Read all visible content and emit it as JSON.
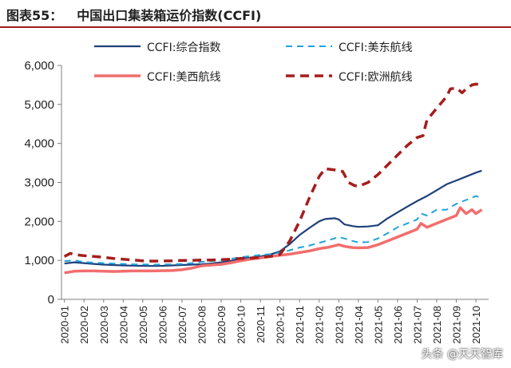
{
  "title": {
    "figure": "图表55：",
    "text": "中国出口集装箱运价指数(CCFI)"
  },
  "watermark": "头条 @天天智库",
  "chart_data": {
    "type": "line",
    "ylim": [
      0,
      6000
    ],
    "yticks": [
      "0",
      "1,000",
      "2,000",
      "3,000",
      "4,000",
      "5,000",
      "6,000"
    ],
    "ytick_values": [
      0,
      1000,
      2000,
      3000,
      4000,
      5000,
      6000
    ],
    "categories": [
      "2020-01",
      "2020-02",
      "2020-03",
      "2020-04",
      "2020-05",
      "2020-06",
      "2020-07",
      "2020-08",
      "2020-09",
      "2020-10",
      "2020-11",
      "2020-12",
      "2021-01",
      "2021-02",
      "2021-03",
      "2021-04",
      "2021-05",
      "2021-06",
      "2021-07",
      "2021-08",
      "2021-09",
      "2021-10"
    ],
    "x_end": 21.3,
    "legend_position": "top",
    "series": [
      {
        "name": "CCFI:综合指数",
        "color": "#1f3f7a",
        "style": "solid",
        "width": 2.2,
        "points": [
          [
            0,
            920
          ],
          [
            0.5,
            950
          ],
          [
            1,
            930
          ],
          [
            1.5,
            910
          ],
          [
            2,
            890
          ],
          [
            2.5,
            880
          ],
          [
            3,
            870
          ],
          [
            3.5,
            865
          ],
          [
            4,
            860
          ],
          [
            4.5,
            855
          ],
          [
            5,
            860
          ],
          [
            5.5,
            870
          ],
          [
            6,
            880
          ],
          [
            6.5,
            890
          ],
          [
            7,
            900
          ],
          [
            7.5,
            920
          ],
          [
            8,
            950
          ],
          [
            8.5,
            990
          ],
          [
            9,
            1040
          ],
          [
            9.5,
            1070
          ],
          [
            10,
            1100
          ],
          [
            10.5,
            1150
          ],
          [
            11,
            1230
          ],
          [
            11.5,
            1420
          ],
          [
            12,
            1650
          ],
          [
            12.5,
            1830
          ],
          [
            13,
            2000
          ],
          [
            13.3,
            2060
          ],
          [
            13.8,
            2080
          ],
          [
            14,
            2050
          ],
          [
            14.3,
            1920
          ],
          [
            14.7,
            1880
          ],
          [
            15,
            1860
          ],
          [
            15.5,
            1870
          ],
          [
            16,
            1900
          ],
          [
            16.5,
            2080
          ],
          [
            17,
            2230
          ],
          [
            17.5,
            2380
          ],
          [
            18,
            2520
          ],
          [
            18.5,
            2650
          ],
          [
            19,
            2800
          ],
          [
            19.5,
            2950
          ],
          [
            20,
            3050
          ],
          [
            20.5,
            3150
          ],
          [
            21,
            3250
          ],
          [
            21.3,
            3300
          ]
        ]
      },
      {
        "name": "CCFI:美东航线",
        "color": "#1fa3dc",
        "style": "dashed",
        "width": 2,
        "points": [
          [
            0,
            980
          ],
          [
            0.5,
            1000
          ],
          [
            1,
            960
          ],
          [
            1.5,
            940
          ],
          [
            2,
            930
          ],
          [
            2.5,
            920
          ],
          [
            3,
            910
          ],
          [
            3.5,
            900
          ],
          [
            4,
            895
          ],
          [
            4.5,
            890
          ],
          [
            5,
            895
          ],
          [
            5.5,
            900
          ],
          [
            6,
            910
          ],
          [
            6.5,
            930
          ],
          [
            7,
            960
          ],
          [
            7.5,
            980
          ],
          [
            8,
            1010
          ],
          [
            8.5,
            1040
          ],
          [
            9,
            1080
          ],
          [
            9.5,
            1110
          ],
          [
            10,
            1140
          ],
          [
            10.5,
            1160
          ],
          [
            11,
            1200
          ],
          [
            11.5,
            1260
          ],
          [
            12,
            1330
          ],
          [
            12.5,
            1380
          ],
          [
            13,
            1450
          ],
          [
            13.5,
            1520
          ],
          [
            14,
            1600
          ],
          [
            14.3,
            1560
          ],
          [
            14.7,
            1500
          ],
          [
            15,
            1460
          ],
          [
            15.5,
            1470
          ],
          [
            16,
            1560
          ],
          [
            16.5,
            1700
          ],
          [
            17,
            1850
          ],
          [
            17.5,
            1950
          ],
          [
            18,
            2050
          ],
          [
            18.2,
            2200
          ],
          [
            18.5,
            2150
          ],
          [
            19,
            2300
          ],
          [
            19.5,
            2300
          ],
          [
            20,
            2450
          ],
          [
            20.5,
            2550
          ],
          [
            21,
            2650
          ],
          [
            21.3,
            2600
          ]
        ]
      },
      {
        "name": "CCFI:美西航线",
        "color": "#f26d6d",
        "style": "solid",
        "width": 3.5,
        "points": [
          [
            0,
            680
          ],
          [
            0.5,
            720
          ],
          [
            1,
            730
          ],
          [
            1.5,
            730
          ],
          [
            2,
            720
          ],
          [
            2.5,
            715
          ],
          [
            3,
            720
          ],
          [
            3.5,
            730
          ],
          [
            4,
            730
          ],
          [
            4.5,
            730
          ],
          [
            5,
            735
          ],
          [
            5.5,
            740
          ],
          [
            6,
            760
          ],
          [
            6.5,
            800
          ],
          [
            7,
            860
          ],
          [
            7.5,
            880
          ],
          [
            8,
            900
          ],
          [
            8.5,
            940
          ],
          [
            9,
            990
          ],
          [
            9.5,
            1030
          ],
          [
            10,
            1060
          ],
          [
            10.5,
            1100
          ],
          [
            11,
            1130
          ],
          [
            11.5,
            1160
          ],
          [
            12,
            1200
          ],
          [
            12.5,
            1240
          ],
          [
            13,
            1300
          ],
          [
            13.5,
            1340
          ],
          [
            14,
            1400
          ],
          [
            14.3,
            1360
          ],
          [
            14.7,
            1330
          ],
          [
            15,
            1320
          ],
          [
            15.5,
            1330
          ],
          [
            16,
            1400
          ],
          [
            16.5,
            1500
          ],
          [
            17,
            1600
          ],
          [
            17.5,
            1700
          ],
          [
            18,
            1800
          ],
          [
            18.2,
            1950
          ],
          [
            18.5,
            1850
          ],
          [
            19,
            1950
          ],
          [
            19.5,
            2050
          ],
          [
            20,
            2150
          ],
          [
            20.2,
            2350
          ],
          [
            20.5,
            2200
          ],
          [
            20.8,
            2300
          ],
          [
            21,
            2200
          ],
          [
            21.3,
            2300
          ]
        ]
      },
      {
        "name": "CCFI:欧洲航线",
        "color": "#a51d1d",
        "style": "dashed",
        "width": 3.5,
        "points": [
          [
            0,
            1100
          ],
          [
            0.3,
            1180
          ],
          [
            0.5,
            1150
          ],
          [
            1,
            1120
          ],
          [
            1.5,
            1100
          ],
          [
            2,
            1080
          ],
          [
            2.5,
            1050
          ],
          [
            3,
            1030
          ],
          [
            3.5,
            1010
          ],
          [
            4,
            990
          ],
          [
            4.5,
            980
          ],
          [
            5,
            985
          ],
          [
            5.5,
            990
          ],
          [
            6,
            1000
          ],
          [
            6.5,
            1000
          ],
          [
            7,
            1010
          ],
          [
            7.5,
            1010
          ],
          [
            8,
            1020
          ],
          [
            8.5,
            1030
          ],
          [
            9,
            1050
          ],
          [
            9.5,
            1060
          ],
          [
            10,
            1080
          ],
          [
            10.5,
            1100
          ],
          [
            11,
            1150
          ],
          [
            11.5,
            1500
          ],
          [
            12,
            2000
          ],
          [
            12.5,
            2600
          ],
          [
            13,
            3150
          ],
          [
            13.3,
            3350
          ],
          [
            13.8,
            3320
          ],
          [
            14.2,
            3280
          ],
          [
            14.5,
            3000
          ],
          [
            14.8,
            2920
          ],
          [
            15,
            2900
          ],
          [
            15.5,
            3000
          ],
          [
            16,
            3200
          ],
          [
            16.5,
            3450
          ],
          [
            17,
            3700
          ],
          [
            17.5,
            3950
          ],
          [
            18,
            4150
          ],
          [
            18.3,
            4200
          ],
          [
            18.5,
            4600
          ],
          [
            19,
            4900
          ],
          [
            19.5,
            5200
          ],
          [
            19.7,
            5400
          ],
          [
            20,
            5420
          ],
          [
            20.3,
            5300
          ],
          [
            20.5,
            5400
          ],
          [
            20.8,
            5500
          ],
          [
            21,
            5520
          ],
          [
            21.3,
            5500
          ]
        ]
      }
    ]
  }
}
